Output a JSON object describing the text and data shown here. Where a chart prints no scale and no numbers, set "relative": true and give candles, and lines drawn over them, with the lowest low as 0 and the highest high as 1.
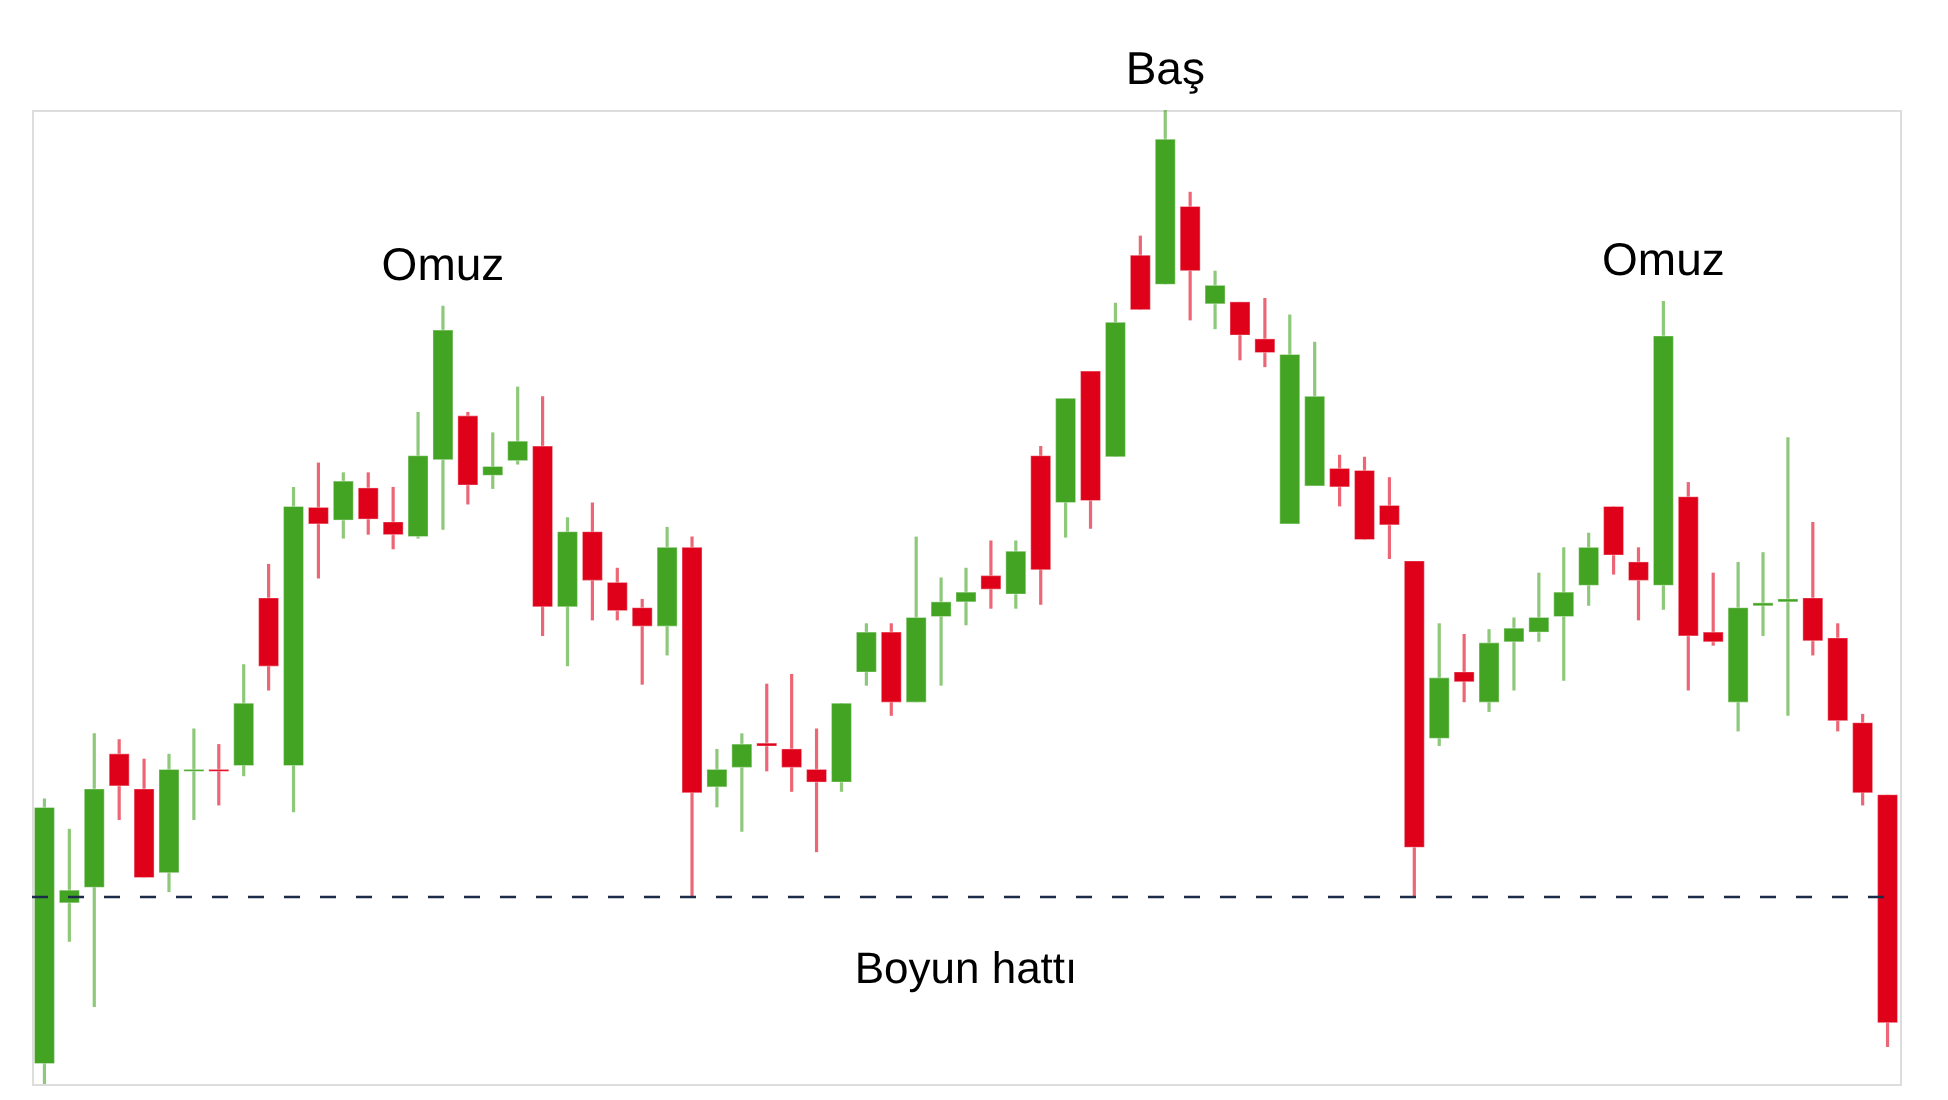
{
  "chart_data": {
    "type": "candlestick",
    "relative": true,
    "categories": [
      null,
      null,
      null,
      null,
      null,
      null,
      null,
      null,
      null,
      null,
      null,
      null,
      null,
      null,
      null,
      null,
      null,
      null,
      null,
      null,
      null,
      null,
      null,
      null,
      null,
      null,
      null,
      null,
      null,
      null,
      null,
      null,
      null,
      null,
      null,
      null,
      null,
      null,
      null,
      null,
      null,
      null,
      null,
      null,
      null,
      null,
      null,
      null,
      null,
      null,
      null,
      null,
      null,
      null,
      null,
      null,
      null,
      null,
      null,
      null,
      null,
      null,
      null,
      null,
      null,
      null,
      null,
      null,
      null,
      null,
      null,
      null,
      null,
      null,
      null
    ],
    "ohlc": [
      [
        0.021,
        0.293,
        0,
        0.284
      ],
      [
        0.186,
        0.262,
        0.146,
        0.199
      ],
      [
        0.202,
        0.36,
        0.079,
        0.303
      ],
      [
        0.339,
        0.354,
        0.271,
        0.306
      ],
      [
        0.303,
        0.334,
        0.212,
        0.212
      ],
      [
        0.217,
        0.339,
        0.197,
        0.323
      ],
      [
        0.321,
        0.365,
        0.271,
        0.323
      ],
      [
        0.323,
        0.349,
        0.286,
        0.321
      ],
      [
        0.327,
        0.431,
        0.316,
        0.391
      ],
      [
        0.499,
        0.534,
        0.404,
        0.429
      ],
      [
        0.327,
        0.613,
        0.279,
        0.593
      ],
      [
        0.592,
        0.638,
        0.519,
        0.575
      ],
      [
        0.579,
        0.628,
        0.56,
        0.619
      ],
      [
        0.612,
        0.628,
        0.564,
        0.58
      ],
      [
        0.577,
        0.613,
        0.549,
        0.564
      ],
      [
        0.562,
        0.69,
        0.56,
        0.645
      ],
      [
        0.641,
        0.799,
        0.569,
        0.774
      ],
      [
        0.686,
        0.69,
        0.595,
        0.615
      ],
      [
        0.625,
        0.669,
        0.611,
        0.634
      ],
      [
        0.64,
        0.716,
        0.636,
        0.66
      ],
      [
        0.655,
        0.706,
        0.46,
        0.49
      ],
      [
        0.49,
        0.582,
        0.429,
        0.567
      ],
      [
        0.567,
        0.597,
        0.476,
        0.517
      ],
      [
        0.515,
        0.53,
        0.476,
        0.486
      ],
      [
        0.489,
        0.498,
        0.41,
        0.47
      ],
      [
        0.47,
        0.572,
        0.44,
        0.551
      ],
      [
        0.551,
        0.562,
        0.192,
        0.299
      ],
      [
        0.305,
        0.344,
        0.284,
        0.323
      ],
      [
        0.325,
        0.36,
        0.259,
        0.349
      ],
      [
        0.35,
        0.411,
        0.321,
        0.347
      ],
      [
        0.344,
        0.421,
        0.3,
        0.325
      ],
      [
        0.323,
        0.365,
        0.238,
        0.31
      ],
      [
        0.31,
        0.391,
        0.3,
        0.391
      ],
      [
        0.423,
        0.473,
        0.409,
        0.464
      ],
      [
        0.464,
        0.473,
        0.378,
        0.392
      ],
      [
        0.392,
        0.562,
        0.392,
        0.479
      ],
      [
        0.48,
        0.52,
        0.409,
        0.495
      ],
      [
        0.495,
        0.53,
        0.471,
        0.505
      ],
      [
        0.522,
        0.558,
        0.488,
        0.508
      ],
      [
        0.503,
        0.558,
        0.488,
        0.547
      ],
      [
        0.645,
        0.655,
        0.492,
        0.528
      ],
      [
        0.597,
        0.704,
        0.561,
        0.704
      ],
      [
        0.732,
        0.732,
        0.57,
        0.599
      ],
      [
        0.644,
        0.802,
        0.644,
        0.782
      ],
      [
        0.851,
        0.871,
        0.795,
        0.795
      ],
      [
        0.821,
        1,
        0.821,
        0.97
      ],
      [
        0.901,
        0.916,
        0.784,
        0.835
      ],
      [
        0.801,
        0.835,
        0.775,
        0.82
      ],
      [
        0.803,
        0.803,
        0.743,
        0.769
      ],
      [
        0.765,
        0.807,
        0.736,
        0.751
      ],
      [
        0.575,
        0.79,
        0.575,
        0.749
      ],
      [
        0.614,
        0.762,
        0.614,
        0.706
      ],
      [
        0.632,
        0.646,
        0.593,
        0.613
      ],
      [
        0.63,
        0.644,
        0.559,
        0.559
      ],
      [
        0.594,
        0.623,
        0.539,
        0.574
      ],
      [
        0.537,
        0.537,
        0.192,
        0.243
      ],
      [
        0.355,
        0.473,
        0.347,
        0.417
      ],
      [
        0.423,
        0.462,
        0.392,
        0.413
      ],
      [
        0.392,
        0.467,
        0.382,
        0.453
      ],
      [
        0.454,
        0.479,
        0.404,
        0.468
      ],
      [
        0.464,
        0.525,
        0.454,
        0.479
      ],
      [
        0.48,
        0.551,
        0.414,
        0.505
      ],
      [
        0.512,
        0.566,
        0.491,
        0.551
      ],
      [
        0.593,
        0.593,
        0.523,
        0.543
      ],
      [
        0.536,
        0.551,
        0.476,
        0.517
      ],
      [
        0.512,
        0.804,
        0.487,
        0.768
      ],
      [
        0.603,
        0.618,
        0.404,
        0.46
      ],
      [
        0.464,
        0.525,
        0.45,
        0.454
      ],
      [
        0.392,
        0.536,
        0.362,
        0.489
      ],
      [
        0.491,
        0.546,
        0.46,
        0.494
      ],
      [
        0.495,
        0.664,
        0.378,
        0.498
      ],
      [
        0.499,
        0.577,
        0.44,
        0.455
      ],
      [
        0.458,
        0.473,
        0.362,
        0.373
      ],
      [
        0.371,
        0.38,
        0.286,
        0.299
      ],
      [
        0.297,
        0.297,
        0.038,
        0.063
      ]
    ],
    "colors": [
      "#42a422",
      "#42a422",
      "#42a422",
      "#df0019",
      "#df0019",
      "#42a422",
      "#42a422",
      "#df0019",
      "#42a422",
      "#df0019",
      "#42a422",
      "#df0019",
      "#42a422",
      "#df0019",
      "#df0019",
      "#42a422",
      "#42a422",
      "#df0019",
      "#42a422",
      "#42a422",
      "#df0019",
      "#42a422",
      "#df0019",
      "#df0019",
      "#df0019",
      "#42a422",
      "#df0019",
      "#42a422",
      "#42a422",
      "#df0019",
      "#df0019",
      "#df0019",
      "#42a422",
      "#42a422",
      "#df0019",
      "#42a422",
      "#42a422",
      "#42a422",
      "#df0019",
      "#42a422",
      "#df0019",
      "#42a422",
      "#df0019",
      "#42a422",
      "#df0019",
      "#42a422",
      "#df0019",
      "#42a422",
      "#df0019",
      "#df0019",
      "#42a422",
      "#42a422",
      "#df0019",
      "#df0019",
      "#df0019",
      "#df0019",
      "#42a422",
      "#df0019",
      "#42a422",
      "#42a422",
      "#42a422",
      "#42a422",
      "#42a422",
      "#df0019",
      "#df0019",
      "#42a422",
      "#df0019",
      "#df0019",
      "#42a422",
      "#42a422",
      "#42a422",
      "#df0019",
      "#df0019",
      "#df0019",
      "#df0019"
    ],
    "ref_lines": [
      {
        "axis": "y",
        "value": 0.192,
        "label": "Boyun hattı",
        "color": "#1c2b4a",
        "line_style": "dashed"
      }
    ],
    "annotations": [
      {
        "text": "Omuz",
        "y": 0.799
      },
      {
        "text": "Baş",
        "y": 1
      },
      {
        "text": "Omuz",
        "y": 0.804
      }
    ]
  }
}
